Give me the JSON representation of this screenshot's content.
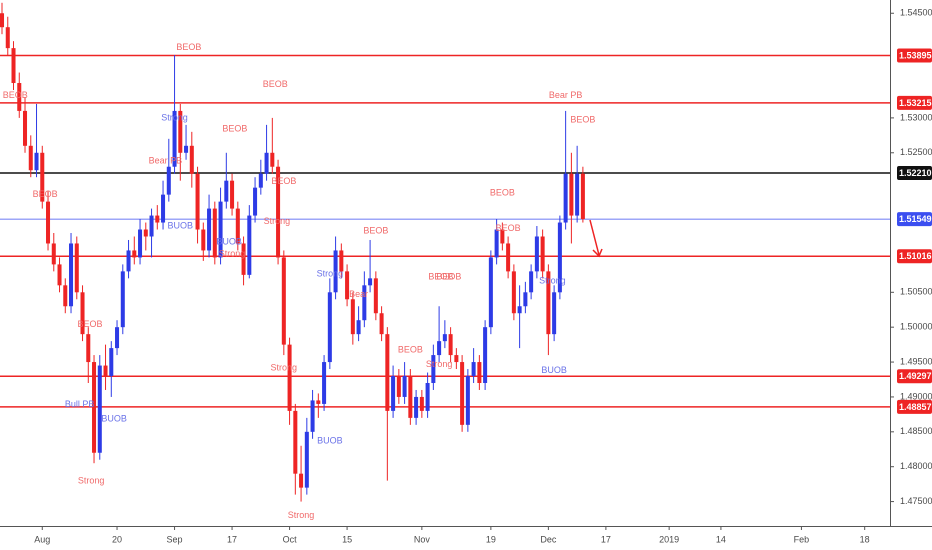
{
  "chart_data": {
    "type": "candlestick",
    "up_color": "#2d3be6",
    "down_color": "#ee2424",
    "ylim": [
      1.4715,
      1.5469
    ],
    "xlim": [
      -0.35,
      154.4
    ],
    "yticks": [
      {
        "value": 1.545,
        "label": "1.54500"
      },
      {
        "value": 1.53,
        "label": "1.53000"
      },
      {
        "value": 1.525,
        "label": "1.52500"
      },
      {
        "value": 1.505,
        "label": "1.50500"
      },
      {
        "value": 1.5,
        "label": "1.50000"
      },
      {
        "value": 1.495,
        "label": "1.49500"
      },
      {
        "value": 1.49,
        "label": "1.49000"
      },
      {
        "value": 1.485,
        "label": "1.48500"
      },
      {
        "value": 1.48,
        "label": "1.48000"
      },
      {
        "value": 1.475,
        "label": "1.47500"
      }
    ],
    "xticks": [
      {
        "value": 7,
        "label": "Aug"
      },
      {
        "value": 20,
        "label": "20"
      },
      {
        "value": 30,
        "label": "Sep"
      },
      {
        "value": 40,
        "label": "17"
      },
      {
        "value": 50,
        "label": "Oct"
      },
      {
        "value": 60,
        "label": "15"
      },
      {
        "value": 73,
        "label": "Nov"
      },
      {
        "value": 85,
        "label": "19"
      },
      {
        "value": 95,
        "label": "Dec"
      },
      {
        "value": 105,
        "label": "17"
      },
      {
        "value": 116,
        "label": "2019"
      },
      {
        "value": 125,
        "label": "14"
      },
      {
        "value": 139,
        "label": "Feb"
      },
      {
        "value": 150,
        "label": "18"
      }
    ],
    "grid": false,
    "levels": [
      {
        "value": 1.53895,
        "color": "#ee2424"
      },
      {
        "value": 1.53215,
        "color": "#ee2424"
      },
      {
        "value": 1.5221,
        "label": "1.52210",
        "color": "#111111"
      },
      {
        "value": 1.51549,
        "color": "#3b4ef0"
      },
      {
        "value": 1.51016,
        "color": "#ee2424"
      },
      {
        "value": 1.49297,
        "color": "#ee2424"
      },
      {
        "value": 1.48857,
        "color": "#ee2424"
      }
    ],
    "candles": [
      [
        1.545,
        1.5465,
        1.542,
        1.543
      ],
      [
        1.543,
        1.5445,
        1.539,
        1.54
      ],
      [
        1.54,
        1.541,
        1.534,
        1.535
      ],
      [
        1.535,
        1.5365,
        1.53,
        1.531
      ],
      [
        1.531,
        1.533,
        1.525,
        1.526
      ],
      [
        1.526,
        1.5275,
        1.5215,
        1.5225
      ],
      [
        1.5225,
        1.532,
        1.5215,
        1.525
      ],
      [
        1.525,
        1.526,
        1.517,
        1.518
      ],
      [
        1.518,
        1.5195,
        1.511,
        1.512
      ],
      [
        1.512,
        1.5135,
        1.508,
        1.509
      ],
      [
        1.509,
        1.51,
        1.505,
        1.506
      ],
      [
        1.506,
        1.507,
        1.502,
        1.503
      ],
      [
        1.503,
        1.5135,
        1.502,
        1.512
      ],
      [
        1.512,
        1.513,
        1.504,
        1.505
      ],
      [
        1.505,
        1.506,
        1.498,
        1.499
      ],
      [
        1.499,
        1.5,
        1.492,
        1.495
      ],
      [
        1.495,
        1.496,
        1.4805,
        1.482
      ],
      [
        1.482,
        1.496,
        1.481,
        1.4945
      ],
      [
        1.4945,
        1.4975,
        1.491,
        1.493
      ],
      [
        1.493,
        1.498,
        1.49,
        1.497
      ],
      [
        1.497,
        1.501,
        1.496,
        1.5
      ],
      [
        1.5,
        1.509,
        1.499,
        1.508
      ],
      [
        1.508,
        1.5125,
        1.507,
        1.511
      ],
      [
        1.511,
        1.513,
        1.509,
        1.51
      ],
      [
        1.51,
        1.5155,
        1.509,
        1.514
      ],
      [
        1.514,
        1.515,
        1.511,
        1.513
      ],
      [
        1.513,
        1.517,
        1.51,
        1.516
      ],
      [
        1.516,
        1.5175,
        1.514,
        1.515
      ],
      [
        1.515,
        1.521,
        1.514,
        1.519
      ],
      [
        1.519,
        1.527,
        1.518,
        1.523
      ],
      [
        1.523,
        1.539,
        1.522,
        1.531
      ],
      [
        1.531,
        1.532,
        1.521,
        1.525
      ],
      [
        1.525,
        1.529,
        1.524,
        1.526
      ],
      [
        1.526,
        1.528,
        1.52,
        1.522
      ],
      [
        1.522,
        1.523,
        1.512,
        1.514
      ],
      [
        1.514,
        1.515,
        1.5095,
        1.511
      ],
      [
        1.511,
        1.519,
        1.51,
        1.517
      ],
      [
        1.517,
        1.518,
        1.509,
        1.51
      ],
      [
        1.51,
        1.52,
        1.509,
        1.518
      ],
      [
        1.518,
        1.525,
        1.517,
        1.521
      ],
      [
        1.521,
        1.522,
        1.516,
        1.517
      ],
      [
        1.517,
        1.518,
        1.511,
        1.512
      ],
      [
        1.512,
        1.513,
        1.506,
        1.5075
      ],
      [
        1.5075,
        1.5175,
        1.507,
        1.516
      ],
      [
        1.516,
        1.5215,
        1.515,
        1.52
      ],
      [
        1.52,
        1.524,
        1.519,
        1.522
      ],
      [
        1.522,
        1.529,
        1.521,
        1.525
      ],
      [
        1.525,
        1.53,
        1.522,
        1.523
      ],
      [
        1.523,
        1.524,
        1.509,
        1.51
      ],
      [
        1.51,
        1.511,
        1.496,
        1.4975
      ],
      [
        1.4975,
        1.4985,
        1.486,
        1.488
      ],
      [
        1.488,
        1.489,
        1.476,
        1.479
      ],
      [
        1.479,
        1.483,
        1.475,
        1.477
      ],
      [
        1.477,
        1.487,
        1.476,
        1.485
      ],
      [
        1.485,
        1.491,
        1.484,
        1.4895
      ],
      [
        1.4895,
        1.4905,
        1.487,
        1.489
      ],
      [
        1.489,
        1.496,
        1.488,
        1.495
      ],
      [
        1.495,
        1.507,
        1.494,
        1.505
      ],
      [
        1.505,
        1.513,
        1.504,
        1.511
      ],
      [
        1.511,
        1.512,
        1.507,
        1.508
      ],
      [
        1.508,
        1.509,
        1.503,
        1.504
      ],
      [
        1.504,
        1.505,
        1.4975,
        1.499
      ],
      [
        1.499,
        1.503,
        1.498,
        1.501
      ],
      [
        1.501,
        1.508,
        1.5,
        1.506
      ],
      [
        1.506,
        1.5125,
        1.505,
        1.507
      ],
      [
        1.507,
        1.508,
        1.501,
        1.502
      ],
      [
        1.502,
        1.503,
        1.498,
        1.499
      ],
      [
        1.499,
        1.5,
        1.478,
        1.488
      ],
      [
        1.488,
        1.4945,
        1.487,
        1.493
      ],
      [
        1.493,
        1.494,
        1.489,
        1.49
      ],
      [
        1.49,
        1.495,
        1.489,
        1.493
      ],
      [
        1.493,
        1.494,
        1.486,
        1.487
      ],
      [
        1.487,
        1.491,
        1.486,
        1.49
      ],
      [
        1.49,
        1.491,
        1.487,
        1.488
      ],
      [
        1.488,
        1.4935,
        1.487,
        1.492
      ],
      [
        1.492,
        1.4975,
        1.491,
        1.496
      ],
      [
        1.496,
        1.503,
        1.495,
        1.498
      ],
      [
        1.498,
        1.501,
        1.497,
        1.499
      ],
      [
        1.499,
        1.5,
        1.495,
        1.496
      ],
      [
        1.496,
        1.497,
        1.494,
        1.495
      ],
      [
        1.495,
        1.496,
        1.485,
        1.486
      ],
      [
        1.486,
        1.494,
        1.485,
        1.493
      ],
      [
        1.493,
        1.497,
        1.492,
        1.495
      ],
      [
        1.495,
        1.496,
        1.491,
        1.492
      ],
      [
        1.492,
        1.501,
        1.491,
        1.5
      ],
      [
        1.5,
        1.511,
        1.499,
        1.51
      ],
      [
        1.51,
        1.5155,
        1.509,
        1.514
      ],
      [
        1.514,
        1.515,
        1.511,
        1.512
      ],
      [
        1.512,
        1.513,
        1.507,
        1.508
      ],
      [
        1.508,
        1.509,
        1.501,
        1.502
      ],
      [
        1.502,
        1.506,
        1.497,
        1.503
      ],
      [
        1.503,
        1.5065,
        1.502,
        1.505
      ],
      [
        1.505,
        1.509,
        1.504,
        1.508
      ],
      [
        1.508,
        1.5145,
        1.507,
        1.513
      ],
      [
        1.513,
        1.514,
        1.507,
        1.508
      ],
      [
        1.508,
        1.509,
        1.496,
        1.499
      ],
      [
        1.499,
        1.506,
        1.498,
        1.505
      ],
      [
        1.505,
        1.516,
        1.504,
        1.515
      ],
      [
        1.515,
        1.531,
        1.514,
        1.522
      ],
      [
        1.522,
        1.525,
        1.512,
        1.516
      ],
      [
        1.516,
        1.526,
        1.515,
        1.522
      ],
      [
        1.522,
        1.523,
        1.515,
        1.5155
      ]
    ],
    "annotations": [
      {
        "text": "BEOB",
        "x": 2.3,
        "y": 1.5332,
        "color": "#f06a6a"
      },
      {
        "text": "BEOB",
        "x": 32.5,
        "y": 1.5401,
        "color": "#f06a6a"
      },
      {
        "text": "BEOB",
        "x": 47.5,
        "y": 1.5348,
        "color": "#f06a6a"
      },
      {
        "text": "BEOB",
        "x": 40.5,
        "y": 1.5284,
        "color": "#f06a6a"
      },
      {
        "text": "Bear PB",
        "x": 28.4,
        "y": 1.5238,
        "color": "#f06a6a"
      },
      {
        "text": "BEOB",
        "x": 7.5,
        "y": 1.519,
        "color": "#f06a6a"
      },
      {
        "text": "Strong",
        "x": 30,
        "y": 1.53,
        "color": "#6a72e8"
      },
      {
        "text": "BUOB",
        "x": 31,
        "y": 1.5145,
        "color": "#6a72e8"
      },
      {
        "text": "BUOB",
        "x": 39.5,
        "y": 1.5122,
        "color": "#6a72e8"
      },
      {
        "text": "Strong",
        "x": 40,
        "y": 1.5105,
        "color": "#f06a6a"
      },
      {
        "text": "BEOB",
        "x": 49,
        "y": 1.5209,
        "color": "#f06a6a"
      },
      {
        "text": "Strong",
        "x": 47.8,
        "y": 1.5151,
        "color": "#f06a6a"
      },
      {
        "text": "BEOB",
        "x": 15.3,
        "y": 1.5004,
        "color": "#f06a6a"
      },
      {
        "text": "Bull PB",
        "x": 13.5,
        "y": 1.4889,
        "color": "#6a72e8"
      },
      {
        "text": "BUOB",
        "x": 19.5,
        "y": 1.4868,
        "color": "#6a72e8"
      },
      {
        "text": "Strong",
        "x": 15.5,
        "y": 1.4779,
        "color": "#f06a6a"
      },
      {
        "text": "Strong",
        "x": 49,
        "y": 1.4941,
        "color": "#f06a6a"
      },
      {
        "text": "Strong",
        "x": 52,
        "y": 1.473,
        "color": "#f06a6a"
      },
      {
        "text": "BUOB",
        "x": 57,
        "y": 1.4837,
        "color": "#6a72e8"
      },
      {
        "text": "Strong",
        "x": 57,
        "y": 1.5076,
        "color": "#6a72e8"
      },
      {
        "text": "BEOB",
        "x": 65,
        "y": 1.5138,
        "color": "#f06a6a"
      },
      {
        "text": "Bear",
        "x": 62,
        "y": 1.5047,
        "color": "#f06a6a"
      },
      {
        "text": "BEOB",
        "x": 71,
        "y": 1.4967,
        "color": "#f06a6a"
      },
      {
        "text": "Strong",
        "x": 76,
        "y": 1.4946,
        "color": "#f06a6a"
      },
      {
        "text": "BEOB",
        "x": 76.3,
        "y": 1.5072,
        "color": "#f06a6a"
      },
      {
        "text": "BEOB",
        "x": 77.7,
        "y": 1.5072,
        "color": "#f06a6a"
      },
      {
        "text": "BEOB",
        "x": 87,
        "y": 1.5192,
        "color": "#f06a6a"
      },
      {
        "text": "BEOB",
        "x": 88,
        "y": 1.5141,
        "color": "#f06a6a"
      },
      {
        "text": "Strong",
        "x": 95.7,
        "y": 1.5066,
        "color": "#6a72e8"
      },
      {
        "text": "BUOB",
        "x": 96,
        "y": 1.4938,
        "color": "#6a72e8"
      },
      {
        "text": "Bear PB",
        "x": 98,
        "y": 1.5332,
        "color": "#f06a6a"
      },
      {
        "text": "BEOB",
        "x": 101,
        "y": 1.5297,
        "color": "#f06a6a"
      }
    ]
  }
}
